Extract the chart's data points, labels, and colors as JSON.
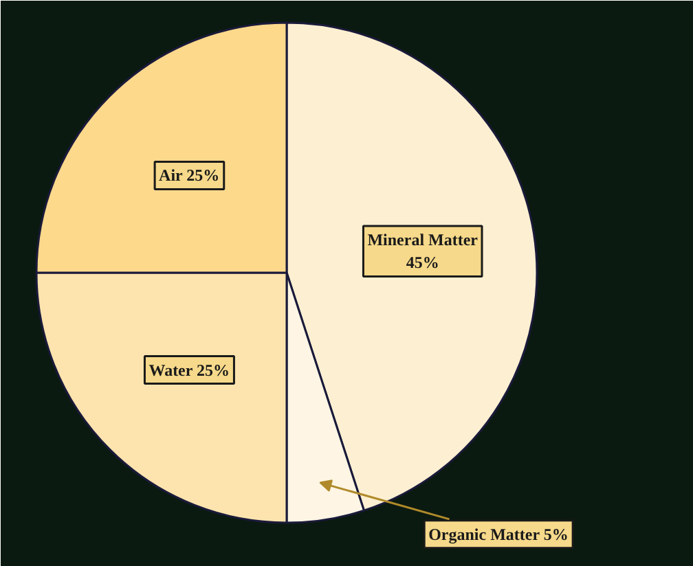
{
  "chart_data": {
    "type": "pie",
    "categories": [
      "Mineral Matter",
      "Organic Matter",
      "Water",
      "Air"
    ],
    "values": [
      45,
      5,
      25,
      25
    ],
    "value_labels": [
      "45%",
      "5%",
      "25%",
      "25%"
    ],
    "colors": [
      "#fdf0d2",
      "#fef5e4",
      "#fde4ae",
      "#fdd98c"
    ]
  }
}
